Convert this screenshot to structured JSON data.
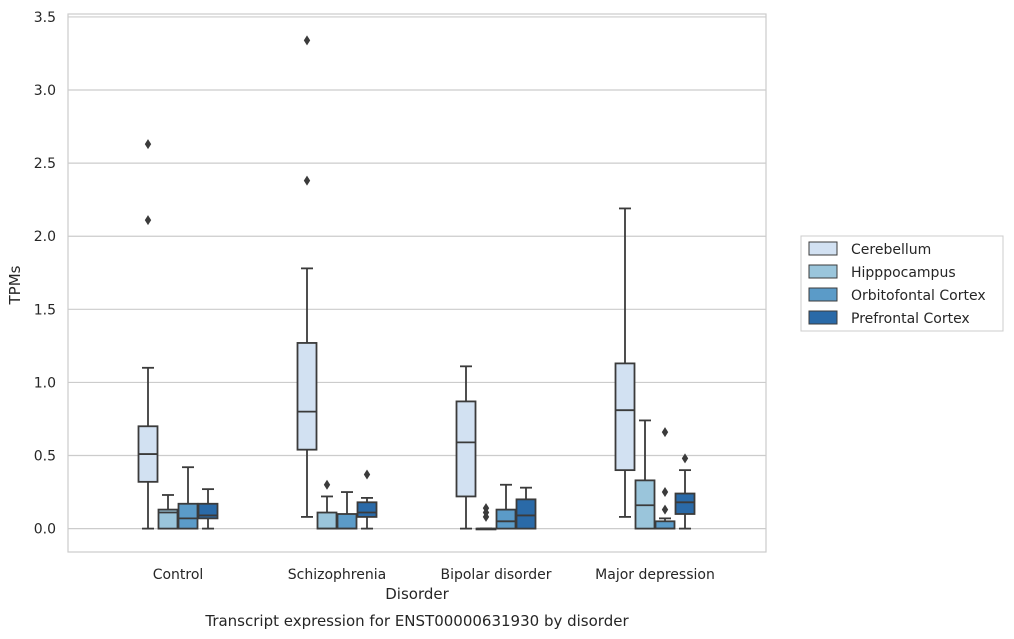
{
  "chart_data": {
    "type": "box",
    "title": "",
    "caption": "Transcript expression for ENST00000631930 by disorder",
    "xlabel": "Disorder",
    "ylabel": "TPMs",
    "ylim": [
      -0.16,
      3.52
    ],
    "yticks": [
      0.0,
      0.5,
      1.0,
      1.5,
      2.0,
      2.5,
      3.0,
      3.5
    ],
    "ytick_labels": [
      "0.0",
      "0.5",
      "1.0",
      "1.5",
      "2.0",
      "2.5",
      "3.0",
      "3.5"
    ],
    "grid": true,
    "legend_position": "right",
    "categories": [
      "Control",
      "Schizophrenia",
      "Bipolar disorder",
      "Major depression"
    ],
    "series": [
      {
        "name": "Cerebellum",
        "color": "#d2e1f2",
        "boxes": [
          {
            "whislo": 0.0,
            "q1": 0.32,
            "med": 0.51,
            "q3": 0.7,
            "whishi": 1.1,
            "fliers": [
              2.11,
              2.63
            ]
          },
          {
            "whislo": 0.08,
            "q1": 0.54,
            "med": 0.8,
            "q3": 1.27,
            "whishi": 1.78,
            "fliers": [
              2.38,
              3.34
            ]
          },
          {
            "whislo": 0.0,
            "q1": 0.22,
            "med": 0.59,
            "q3": 0.87,
            "whishi": 1.11,
            "fliers": []
          },
          {
            "whislo": 0.08,
            "q1": 0.4,
            "med": 0.81,
            "q3": 1.13,
            "whishi": 2.19,
            "fliers": []
          }
        ]
      },
      {
        "name": "Hipppocampus",
        "color": "#9ac5db",
        "boxes": [
          {
            "whislo": 0.0,
            "q1": 0.0,
            "med": 0.11,
            "q3": 0.13,
            "whishi": 0.23,
            "fliers": []
          },
          {
            "whislo": 0.0,
            "q1": 0.0,
            "med": 0.0,
            "q3": 0.11,
            "whishi": 0.22,
            "fliers": [
              0.3
            ]
          },
          {
            "whislo": 0.0,
            "q1": 0.0,
            "med": 0.0,
            "q3": 0.0,
            "whishi": 0.0,
            "fliers": [
              0.08,
              0.11,
              0.14
            ]
          },
          {
            "whislo": 0.0,
            "q1": 0.0,
            "med": 0.16,
            "q3": 0.33,
            "whishi": 0.74,
            "fliers": []
          }
        ]
      },
      {
        "name": "Orbitofontal Cortex",
        "color": "#5b9bc8",
        "boxes": [
          {
            "whislo": 0.0,
            "q1": 0.0,
            "med": 0.07,
            "q3": 0.17,
            "whishi": 0.42,
            "fliers": []
          },
          {
            "whislo": 0.0,
            "q1": 0.0,
            "med": 0.0,
            "q3": 0.1,
            "whishi": 0.25,
            "fliers": []
          },
          {
            "whislo": 0.0,
            "q1": 0.0,
            "med": 0.05,
            "q3": 0.13,
            "whishi": 0.3,
            "fliers": []
          },
          {
            "whislo": 0.0,
            "q1": 0.0,
            "med": 0.0,
            "q3": 0.05,
            "whishi": 0.07,
            "fliers": [
              0.13,
              0.25,
              0.66
            ]
          }
        ]
      },
      {
        "name": "Prefrontal Cortex",
        "color": "#2a6aa8",
        "boxes": [
          {
            "whislo": 0.0,
            "q1": 0.07,
            "med": 0.09,
            "q3": 0.17,
            "whishi": 0.27,
            "fliers": []
          },
          {
            "whislo": 0.0,
            "q1": 0.08,
            "med": 0.11,
            "q3": 0.18,
            "whishi": 0.21,
            "fliers": [
              0.37
            ]
          },
          {
            "whislo": 0.0,
            "q1": 0.0,
            "med": 0.09,
            "q3": 0.2,
            "whishi": 0.28,
            "fliers": []
          },
          {
            "whislo": 0.0,
            "q1": 0.1,
            "med": 0.18,
            "q3": 0.24,
            "whishi": 0.4,
            "fliers": [
              0.48
            ]
          }
        ]
      }
    ]
  }
}
